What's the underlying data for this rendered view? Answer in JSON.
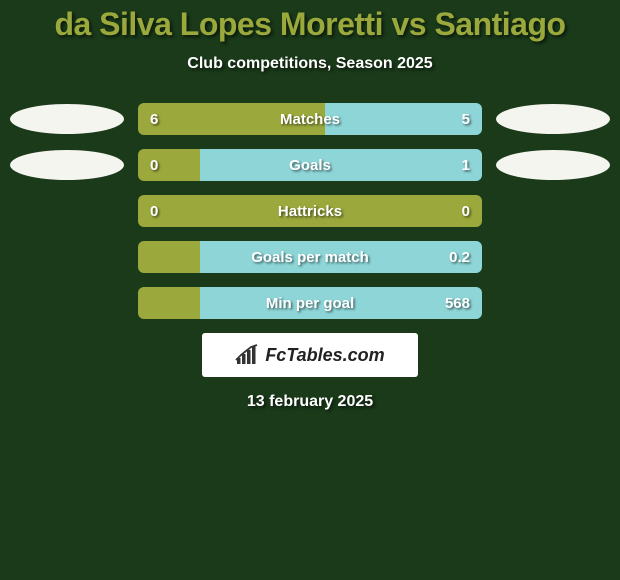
{
  "title": "da Silva Lopes Moretti vs Santiago",
  "title_color": "#9aa83c",
  "subtitle": "Club competitions, Season 2025",
  "background_color": "#1a3a1a",
  "left_color": "#9aa83c",
  "right_color": "#8dd5d7",
  "text_color": "#ffffff",
  "ellipse_left_color": "#f5f5f0",
  "ellipse_right_color": "#f5f5f0",
  "bar_radius": 6,
  "rows": [
    {
      "label": "Matches",
      "left_val": "6",
      "right_val": "5",
      "left_pct": 54.5,
      "right_pct": 45.5,
      "show_ellipse": true
    },
    {
      "label": "Goals",
      "left_val": "0",
      "right_val": "1",
      "left_pct": 18.0,
      "right_pct": 82.0,
      "show_ellipse": true
    },
    {
      "label": "Hattricks",
      "left_val": "0",
      "right_val": "0",
      "left_pct": 100.0,
      "right_pct": 0.0,
      "show_ellipse": false
    },
    {
      "label": "Goals per match",
      "left_val": "",
      "right_val": "0.2",
      "left_pct": 18.0,
      "right_pct": 82.0,
      "show_ellipse": false
    },
    {
      "label": "Min per goal",
      "left_val": "",
      "right_val": "568",
      "left_pct": 18.0,
      "right_pct": 82.0,
      "show_ellipse": false
    }
  ],
  "brand": "FcTables.com",
  "date": "13 february 2025"
}
